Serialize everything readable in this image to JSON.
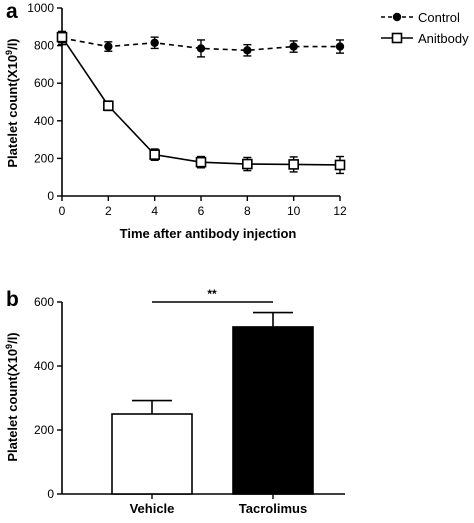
{
  "chart_data": [
    {
      "panel": "a",
      "type": "line",
      "xlabel": "Time after antibody injection",
      "ylabel": "Platelet count(X10",
      "ylabel_sup": "9",
      "ylabel_end": "/l)",
      "xlim": [
        0,
        12
      ],
      "ylim": [
        0,
        1000
      ],
      "x_ticks": [
        0,
        2,
        4,
        6,
        8,
        10,
        12
      ],
      "y_ticks": [
        0,
        200,
        400,
        600,
        800,
        1000
      ],
      "legend_position": "top-right",
      "grid": false,
      "x": [
        0,
        2,
        4,
        6,
        8,
        10,
        12
      ],
      "series": [
        {
          "name": "Control",
          "style": "dashed",
          "marker": "filled-circle",
          "values": [
            840,
            795,
            815,
            785,
            775,
            795,
            795
          ],
          "errors": [
            35,
            25,
            30,
            45,
            30,
            30,
            35
          ]
        },
        {
          "name": "Anitbody",
          "style": "solid",
          "marker": "open-square",
          "values": [
            845,
            480,
            220,
            180,
            170,
            168,
            165
          ],
          "errors": [
            30,
            25,
            30,
            30,
            35,
            40,
            45
          ]
        }
      ]
    },
    {
      "panel": "b",
      "type": "bar",
      "ylabel": "Platelet count(X10",
      "ylabel_sup": "9",
      "ylabel_end": "/l)",
      "ylim": [
        0,
        600
      ],
      "y_ticks": [
        0,
        200,
        400,
        600
      ],
      "grid": false,
      "categories": [
        "Vehicle",
        "Tacrolimus"
      ],
      "values": [
        250,
        522
      ],
      "errors": [
        42,
        45
      ],
      "colors": [
        "#ffffff",
        "#000000"
      ],
      "significance": "**"
    }
  ]
}
